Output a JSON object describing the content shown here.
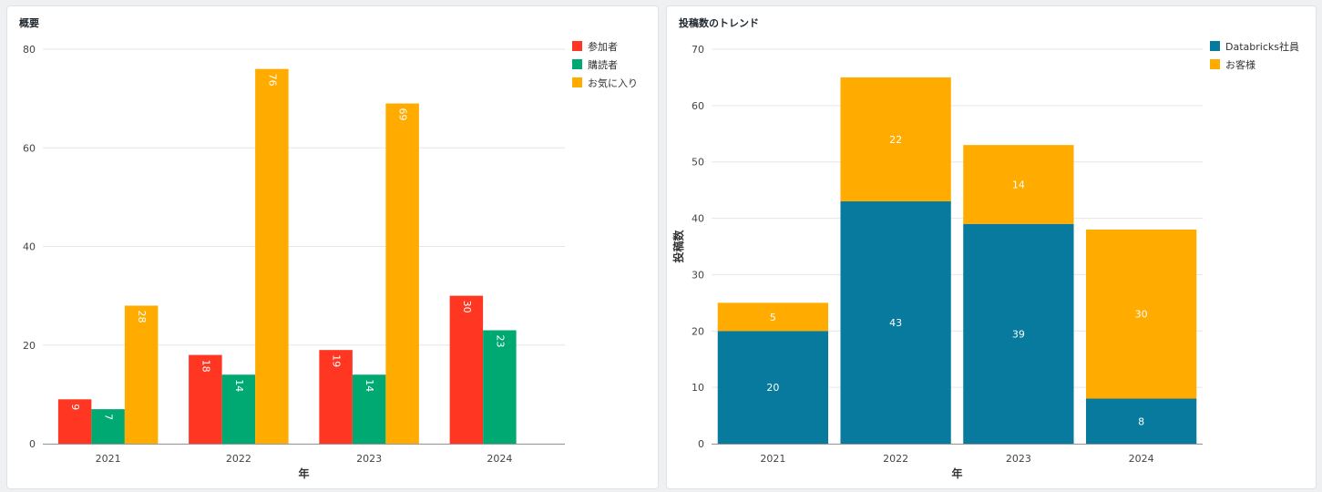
{
  "chart_data": [
    {
      "type": "bar",
      "title": "概要",
      "xlabel": "年",
      "ylabel": "",
      "categories": [
        "2021",
        "2022",
        "2023",
        "2024"
      ],
      "ylim": [
        0,
        80
      ],
      "yticks": [
        0,
        20,
        40,
        60,
        80
      ],
      "grid": true,
      "legend_position": "top-right",
      "series": [
        {
          "name": "参加者",
          "color": "#ff3621",
          "values": [
            9,
            18,
            19,
            30
          ]
        },
        {
          "name": "購読者",
          "color": "#00a972",
          "values": [
            7,
            14,
            14,
            23
          ]
        },
        {
          "name": "お気に入り",
          "color": "#ffab00",
          "values": [
            28,
            76,
            69,
            null
          ]
        }
      ]
    },
    {
      "type": "bar",
      "stacked": true,
      "title": "投稿数のトレンド",
      "xlabel": "年",
      "ylabel": "投稿数",
      "categories": [
        "2021",
        "2022",
        "2023",
        "2024"
      ],
      "ylim": [
        0,
        70
      ],
      "yticks": [
        0,
        10,
        20,
        30,
        40,
        50,
        60,
        70
      ],
      "grid": true,
      "legend_position": "top-right",
      "series": [
        {
          "name": "Databricks社員",
          "color": "#077a9d",
          "values": [
            20,
            43,
            39,
            8
          ]
        },
        {
          "name": "お客様",
          "color": "#ffab00",
          "values": [
            5,
            22,
            14,
            30
          ]
        }
      ]
    }
  ]
}
